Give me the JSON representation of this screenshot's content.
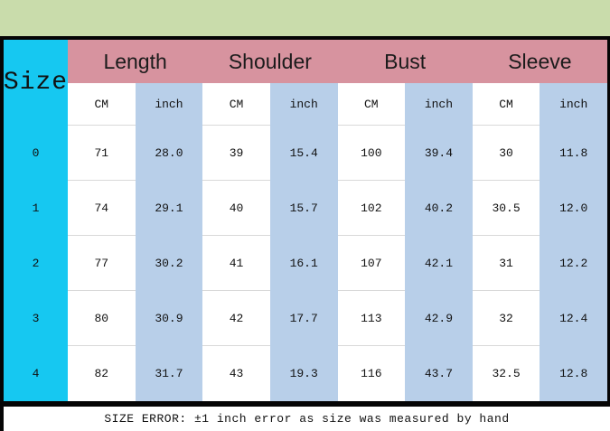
{
  "colors": {
    "background_green": "#c9dcab",
    "size_column_cyan": "#16c8f1",
    "header_pink": "#d7939f",
    "inch_column_blue": "#b8cfe9",
    "row_line_gray": "#d9d9d9",
    "border_black": "#050505"
  },
  "table": {
    "corner_header": "Size",
    "group_headers": [
      "Length",
      "Shoulder",
      "Bust",
      "Sleeve"
    ],
    "unit_cm": "CM",
    "unit_inch": "inch",
    "rows": [
      {
        "size": "0",
        "length_cm": "71",
        "length_inch": "28.0",
        "shoulder_cm": "39",
        "shoulder_inch": "15.4",
        "bust_cm": "100",
        "bust_inch": "39.4",
        "sleeve_cm": "30",
        "sleeve_inch": "11.8"
      },
      {
        "size": "1",
        "length_cm": "74",
        "length_inch": "29.1",
        "shoulder_cm": "40",
        "shoulder_inch": "15.7",
        "bust_cm": "102",
        "bust_inch": "40.2",
        "sleeve_cm": "30.5",
        "sleeve_inch": "12.0"
      },
      {
        "size": "2",
        "length_cm": "77",
        "length_inch": "30.2",
        "shoulder_cm": "41",
        "shoulder_inch": "16.1",
        "bust_cm": "107",
        "bust_inch": "42.1",
        "sleeve_cm": "31",
        "sleeve_inch": "12.2"
      },
      {
        "size": "3",
        "length_cm": "80",
        "length_inch": "30.9",
        "shoulder_cm": "42",
        "shoulder_inch": "17.7",
        "bust_cm": "113",
        "bust_inch": "42.9",
        "sleeve_cm": "32",
        "sleeve_inch": "12.4"
      },
      {
        "size": "4",
        "length_cm": "82",
        "length_inch": "31.7",
        "shoulder_cm": "43",
        "shoulder_inch": "19.3",
        "bust_cm": "116",
        "bust_inch": "43.7",
        "sleeve_cm": "32.5",
        "sleeve_inch": "12.8"
      }
    ]
  },
  "footnote": "SIZE ERROR: ±1 inch error as size was measured by hand",
  "chart_data": {
    "type": "table",
    "columns": [
      "Size",
      "Length CM",
      "Length inch",
      "Shoulder CM",
      "Shoulder inch",
      "Bust CM",
      "Bust inch",
      "Sleeve CM",
      "Sleeve inch"
    ],
    "rows": [
      [
        "0",
        71,
        28.0,
        39,
        15.4,
        100,
        39.4,
        30,
        11.8
      ],
      [
        "1",
        74,
        29.1,
        40,
        15.7,
        102,
        40.2,
        30.5,
        12.0
      ],
      [
        "2",
        77,
        30.2,
        41,
        16.1,
        107,
        42.1,
        31,
        12.2
      ],
      [
        "3",
        80,
        30.9,
        42,
        17.7,
        113,
        42.9,
        32,
        12.4
      ],
      [
        "4",
        82,
        31.7,
        43,
        19.3,
        116,
        43.7,
        32.5,
        12.8
      ]
    ],
    "footnote": "SIZE ERROR: ±1 inch error as size was measured by hand"
  }
}
